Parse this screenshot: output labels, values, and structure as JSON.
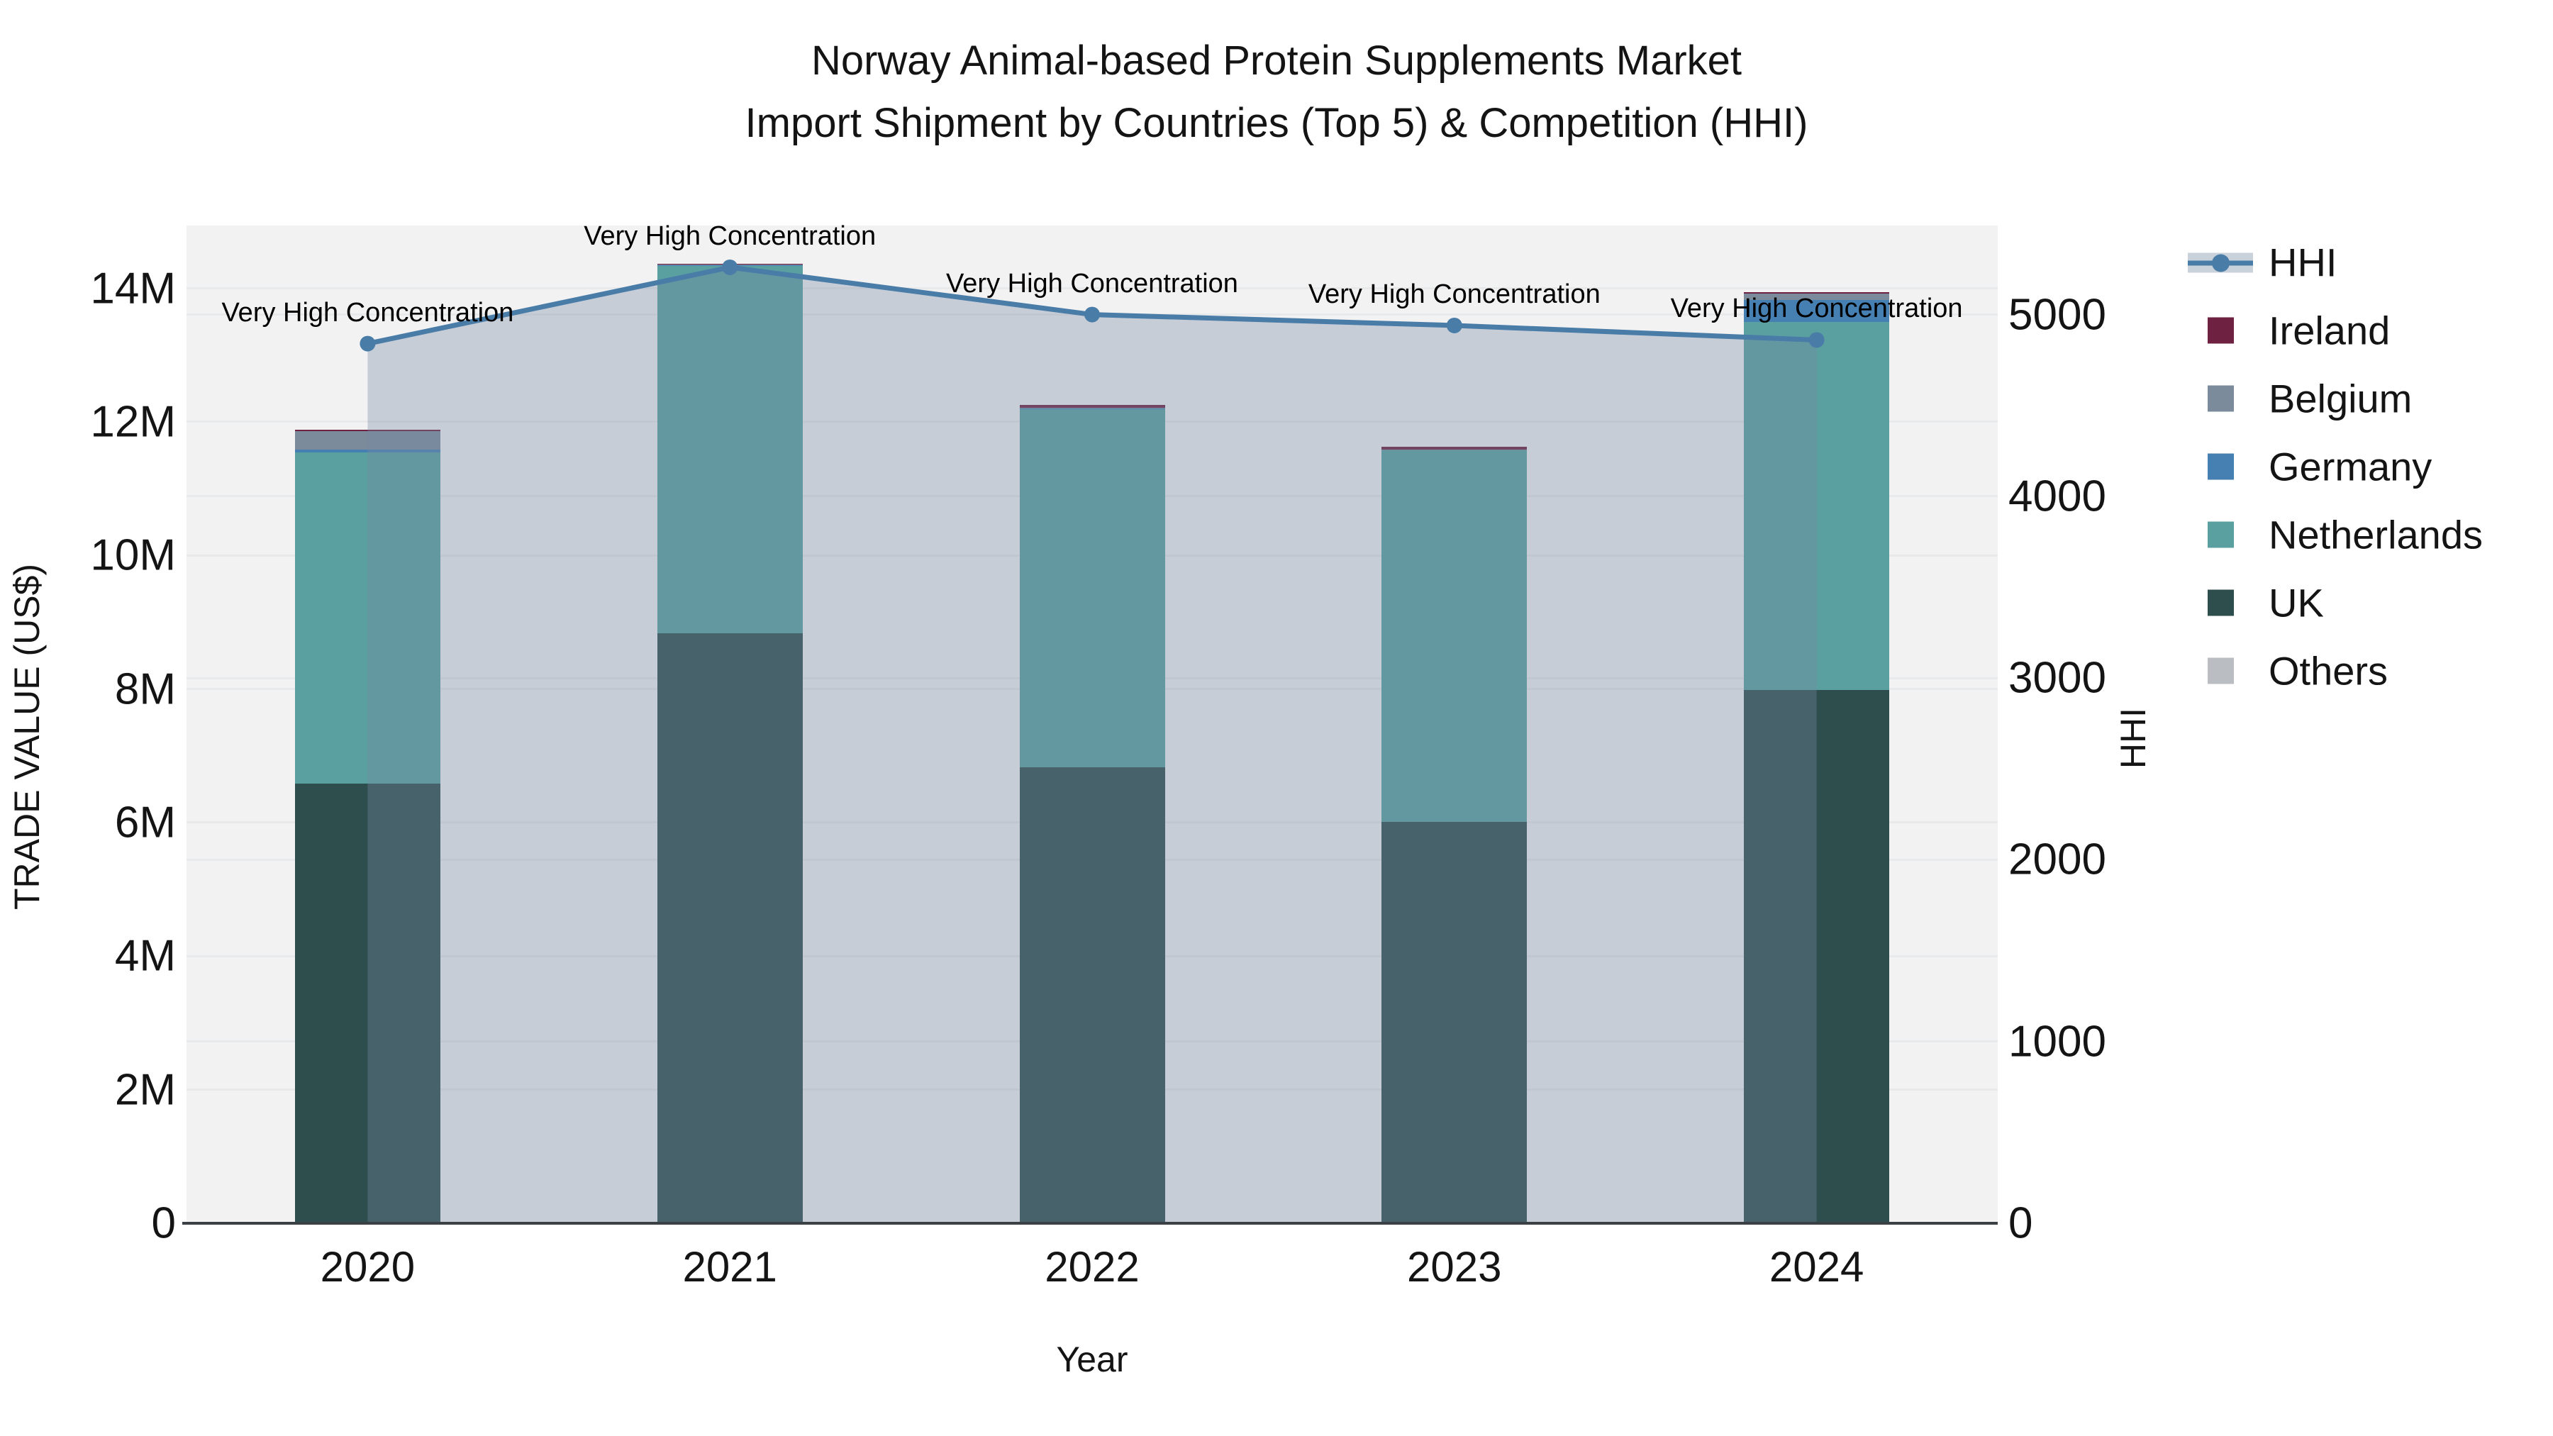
{
  "title": {
    "line1": "Norway Animal-based Protein Supplements Market",
    "line2": "Import Shipment by Countries (Top 5) & Competition (HHI)"
  },
  "axes": {
    "left": {
      "label": "TRADE VALUE (US$)",
      "ticks": [
        "0",
        "2M",
        "4M",
        "6M",
        "8M",
        "10M",
        "12M",
        "14M"
      ],
      "tick_values_musd": [
        0,
        2,
        4,
        6,
        8,
        10,
        12,
        14
      ],
      "max_musd": 14.94
    },
    "right": {
      "label": "HHI",
      "ticks": [
        "0",
        "1000",
        "2000",
        "3000",
        "4000",
        "5000"
      ],
      "tick_values": [
        0,
        1000,
        2000,
        3000,
        4000,
        5000
      ],
      "max": 5490
    },
    "x": {
      "label": "Year",
      "ticks": [
        "2020",
        "2021",
        "2022",
        "2023",
        "2024"
      ]
    }
  },
  "chart_data": {
    "type": [
      "stacked-bar",
      "line-area"
    ],
    "x": [
      "2020",
      "2021",
      "2022",
      "2023",
      "2024"
    ],
    "bar_unit": "million US$",
    "stack_order_bottom_to_top": [
      "UK",
      "Netherlands",
      "Germany",
      "Belgium",
      "Ireland",
      "Others"
    ],
    "series": [
      {
        "name": "UK",
        "type": "bar",
        "color": "#2e4d4d",
        "values": [
          6.58,
          8.83,
          6.83,
          6.01,
          7.98
        ]
      },
      {
        "name": "Netherlands",
        "type": "bar",
        "color": "#5aa0a0",
        "values": [
          4.96,
          5.51,
          5.36,
          5.56,
          5.52
        ]
      },
      {
        "name": "Germany",
        "type": "bar",
        "color": "#4680b2",
        "values": [
          0.05,
          0.01,
          0.01,
          0.01,
          0.33
        ]
      },
      {
        "name": "Belgium",
        "type": "bar",
        "color": "#7b8b9b",
        "values": [
          0.27,
          0.01,
          0.01,
          0.01,
          0.09
        ]
      },
      {
        "name": "Ireland",
        "type": "bar",
        "color": "#6e2140",
        "values": [
          0.02,
          0.01,
          0.04,
          0.04,
          0.02
        ]
      },
      {
        "name": "Others",
        "type": "bar",
        "color": "#babec2",
        "values": [
          0,
          0,
          0,
          0,
          0
        ]
      }
    ],
    "bar_totals_musd": [
      11.88,
      14.37,
      12.25,
      11.63,
      13.94
    ],
    "hhi": {
      "name": "HHI",
      "axis": "right",
      "line_color": "#4a7ca8",
      "area_fill": "rgba(121,138,162,0.35)",
      "values": [
        4840,
        5260,
        5000,
        4940,
        4860
      ]
    },
    "annotations": [
      "Very High Concentration",
      "Very High Concentration",
      "Very High Concentration",
      "Very High Concentration",
      "Very High Concentration"
    ],
    "legend_position": "right",
    "grid": true,
    "ylim_left_musd": [
      0,
      14.94
    ],
    "ylim_right": [
      0,
      5490
    ]
  },
  "legend": {
    "items": [
      {
        "label": "HHI",
        "type": "line",
        "color": "#4a7ca8"
      },
      {
        "label": "Ireland",
        "type": "swatch",
        "color": "#6e2140"
      },
      {
        "label": "Belgium",
        "type": "swatch",
        "color": "#7b8b9b"
      },
      {
        "label": "Germany",
        "type": "swatch",
        "color": "#4680b2"
      },
      {
        "label": "Netherlands",
        "type": "swatch",
        "color": "#5aa0a0"
      },
      {
        "label": "UK",
        "type": "swatch",
        "color": "#2e4d4d"
      },
      {
        "label": "Others",
        "type": "swatch",
        "color": "#babec2"
      }
    ]
  },
  "colors": {
    "plot_bg": "#f2f2f3",
    "gridline": "#e7e9ea",
    "axis_line": "#3b4045",
    "hhi_line": "#4a7ca8",
    "hhi_area": "rgba(121,138,162,0.35)",
    "text": "#141414"
  }
}
